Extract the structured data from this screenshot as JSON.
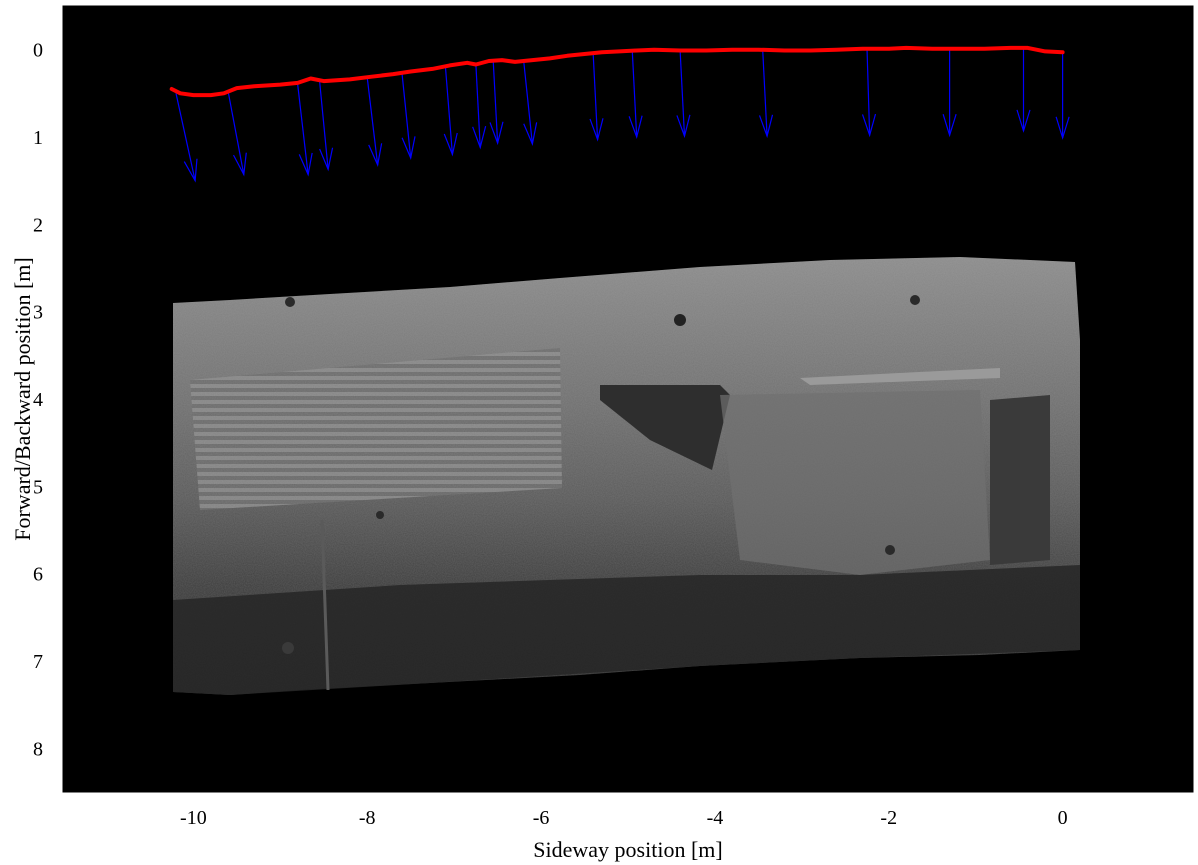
{
  "chart_data": {
    "type": "line",
    "title": "",
    "xlabel": "Sideway position [m]",
    "ylabel": "Forward/Backward position [m]",
    "xlim": [
      -11.5,
      1.5
    ],
    "ylim": [
      -0.5,
      8.5
    ],
    "y_reversed": true,
    "xticks": [
      -10,
      -8,
      -6,
      -4,
      -2,
      0
    ],
    "yticks": [
      0,
      1,
      2,
      3,
      4,
      5,
      6,
      7,
      8
    ],
    "xtick_labels": [
      "-10",
      "-8",
      "-6",
      "-4",
      "-2",
      "0"
    ],
    "ytick_labels": [
      "0",
      "1",
      "2",
      "3",
      "4",
      "5",
      "6",
      "7",
      "8"
    ],
    "background_color": "#000000",
    "grid": false,
    "series": [
      {
        "style": "trajectory",
        "color": "#ff0000",
        "x": [
          -10.25,
          -10.15,
          -10.0,
          -9.8,
          -9.65,
          -9.5,
          -9.3,
          -9.0,
          -8.8,
          -8.65,
          -8.5,
          -8.2,
          -7.95,
          -7.7,
          -7.5,
          -7.25,
          -7.05,
          -6.85,
          -6.75,
          -6.6,
          -6.45,
          -6.3,
          -6.1,
          -5.9,
          -5.7,
          -5.5,
          -5.3,
          -5.1,
          -4.9,
          -4.7,
          -4.4,
          -4.1,
          -3.8,
          -3.5,
          -3.2,
          -2.9,
          -2.6,
          -2.3,
          -2.0,
          -1.8,
          -1.5,
          -1.2,
          -0.9,
          -0.6,
          -0.4,
          -0.2,
          0.0
        ],
        "y": [
          0.45,
          0.5,
          0.52,
          0.52,
          0.5,
          0.44,
          0.42,
          0.4,
          0.38,
          0.33,
          0.36,
          0.34,
          0.31,
          0.28,
          0.25,
          0.22,
          0.18,
          0.15,
          0.17,
          0.13,
          0.12,
          0.14,
          0.12,
          0.1,
          0.07,
          0.05,
          0.03,
          0.02,
          0.01,
          0.0,
          0.01,
          0.01,
          0.0,
          0.0,
          0.01,
          0.01,
          0.0,
          -0.01,
          -0.01,
          -0.02,
          -0.01,
          -0.01,
          -0.01,
          -0.02,
          -0.02,
          0.02,
          0.03
        ]
      },
      {
        "style": "quiver",
        "color": "#0000ff",
        "x": [
          -10.2,
          -9.6,
          -8.8,
          -8.55,
          -8.0,
          -7.6,
          -7.1,
          -6.75,
          -6.55,
          -6.2,
          -5.4,
          -4.95,
          -4.4,
          -3.45,
          -2.25,
          -1.3,
          -0.45,
          0.0
        ],
        "y": [
          0.5,
          0.48,
          0.4,
          0.34,
          0.32,
          0.27,
          0.2,
          0.17,
          0.14,
          0.13,
          0.06,
          0.03,
          0.02,
          0.01,
          0.0,
          0.0,
          -0.02,
          0.03
        ],
        "u": [
          0.22,
          0.18,
          0.12,
          0.1,
          0.12,
          0.1,
          0.08,
          0.05,
          0.05,
          0.1,
          0.05,
          0.05,
          0.05,
          0.05,
          0.03,
          0.0,
          0.0,
          0.0
        ],
        "v": [
          1.0,
          0.95,
          1.03,
          1.03,
          1.0,
          0.97,
          1.0,
          0.95,
          0.93,
          0.95,
          0.97,
          0.97,
          0.97,
          0.98,
          0.98,
          0.98,
          0.95,
          0.98
        ]
      }
    ]
  }
}
